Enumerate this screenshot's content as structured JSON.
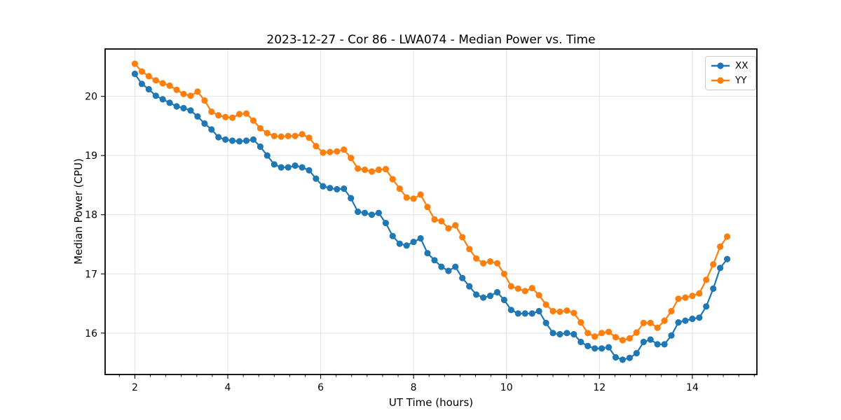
{
  "chart_data": {
    "type": "line",
    "title": "2023-12-27 - Cor 86 - LWA074 - Median Power vs. Time",
    "xlabel": "UT Time (hours)",
    "ylabel": "Median Power (CPU)",
    "xlim": [
      1.36,
      15.39
    ],
    "ylim": [
      15.3,
      20.8
    ],
    "xticks": [
      2,
      4,
      6,
      8,
      10,
      12,
      14
    ],
    "yticks": [
      16,
      17,
      18,
      19,
      20
    ],
    "x_minor_step_hours": 0.3333,
    "grid": true,
    "grid_color": "#e2e2e2",
    "background_color": "#ffffff",
    "legend_position": "upper right",
    "x": [
      2.0,
      2.15,
      2.3,
      2.45,
      2.6,
      2.75,
      2.9,
      3.05,
      3.2,
      3.35,
      3.5,
      3.65,
      3.8,
      3.95,
      4.1,
      4.25,
      4.4,
      4.55,
      4.7,
      4.85,
      5.0,
      5.15,
      5.3,
      5.45,
      5.6,
      5.75,
      5.9,
      6.05,
      6.2,
      6.35,
      6.5,
      6.65,
      6.8,
      6.95,
      7.1,
      7.25,
      7.4,
      7.55,
      7.7,
      7.85,
      8.0,
      8.15,
      8.3,
      8.45,
      8.6,
      8.75,
      8.9,
      9.05,
      9.2,
      9.35,
      9.5,
      9.65,
      9.8,
      9.95,
      10.1,
      10.25,
      10.4,
      10.55,
      10.7,
      10.85,
      11.0,
      11.15,
      11.3,
      11.45,
      11.6,
      11.75,
      11.9,
      12.05,
      12.2,
      12.35,
      12.5,
      12.65,
      12.8,
      12.95,
      13.1,
      13.25,
      13.4,
      13.55,
      13.7,
      13.85,
      14.0,
      14.15,
      14.3,
      14.45,
      14.6,
      14.75
    ],
    "series": [
      {
        "name": "XX",
        "color": "#1f77b4",
        "values": [
          20.38,
          20.21,
          20.12,
          20.01,
          19.95,
          19.89,
          19.83,
          19.8,
          19.76,
          19.66,
          19.54,
          19.44,
          19.31,
          19.27,
          19.25,
          19.24,
          19.25,
          19.27,
          19.15,
          19.0,
          18.85,
          18.8,
          18.8,
          18.83,
          18.8,
          18.75,
          18.61,
          18.48,
          18.45,
          18.43,
          18.44,
          18.28,
          18.05,
          18.03,
          18.0,
          18.03,
          17.86,
          17.64,
          17.51,
          17.48,
          17.54,
          17.6,
          17.35,
          17.23,
          17.12,
          17.05,
          17.12,
          16.93,
          16.79,
          16.65,
          16.6,
          16.63,
          16.69,
          16.56,
          16.39,
          16.33,
          16.33,
          16.33,
          16.37,
          16.17,
          16.0,
          15.98,
          16.0,
          15.98,
          15.85,
          15.78,
          15.74,
          15.74,
          15.76,
          15.59,
          15.55,
          15.58,
          15.66,
          15.85,
          15.89,
          15.81,
          15.81,
          15.96,
          16.18,
          16.21,
          16.24,
          16.26,
          16.45,
          16.75,
          17.1,
          17.25
        ]
      },
      {
        "name": "YY",
        "color": "#ff7f0e",
        "values": [
          20.55,
          20.42,
          20.34,
          20.27,
          20.22,
          20.18,
          20.11,
          20.04,
          20.01,
          20.08,
          19.93,
          19.74,
          19.68,
          19.65,
          19.64,
          19.7,
          19.71,
          19.59,
          19.46,
          19.38,
          19.33,
          19.32,
          19.33,
          19.33,
          19.36,
          19.3,
          19.16,
          19.05,
          19.06,
          19.07,
          19.1,
          18.96,
          18.78,
          18.76,
          18.73,
          18.76,
          18.77,
          18.6,
          18.44,
          18.29,
          18.27,
          18.34,
          18.13,
          17.92,
          17.89,
          17.77,
          17.82,
          17.62,
          17.42,
          17.26,
          17.18,
          17.21,
          17.18,
          17.0,
          16.79,
          16.75,
          16.71,
          16.76,
          16.64,
          16.48,
          16.37,
          16.36,
          16.38,
          16.34,
          16.18,
          16.0,
          15.94,
          16.0,
          16.02,
          15.93,
          15.88,
          15.91,
          16.01,
          16.17,
          16.17,
          16.09,
          16.21,
          16.37,
          16.58,
          16.6,
          16.63,
          16.67,
          16.9,
          17.16,
          17.46,
          17.63
        ]
      }
    ]
  }
}
